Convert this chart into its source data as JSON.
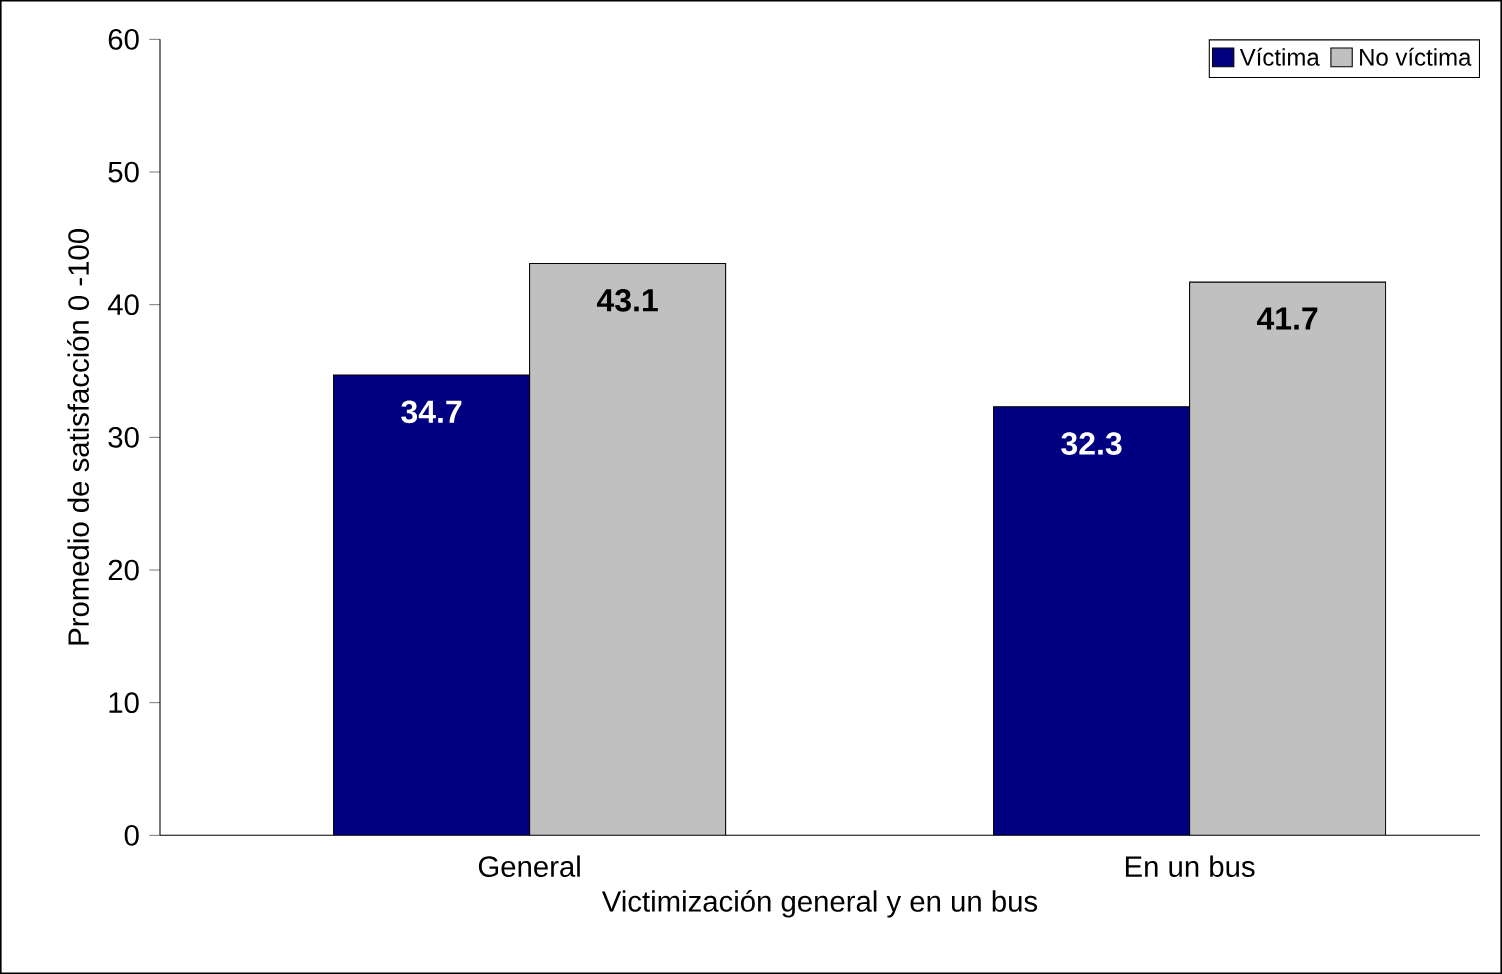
{
  "chart_data": {
    "type": "bar",
    "xlabel": "Victimización general y en un bus",
    "ylabel": "Promedio de satisfacción 0 -100",
    "categories": [
      "General",
      "En un bus"
    ],
    "series": [
      {
        "name": "Víctima",
        "color": "#000080",
        "values": [
          34.7,
          32.3
        ]
      },
      {
        "name": "No víctima",
        "color": "#c0c0c0",
        "values": [
          43.1,
          41.7
        ]
      }
    ],
    "ylim": [
      0,
      60
    ],
    "yticks": [
      0,
      10,
      20,
      30,
      40,
      50,
      60
    ],
    "grid": false,
    "legend": "top right",
    "data_labels": true
  }
}
